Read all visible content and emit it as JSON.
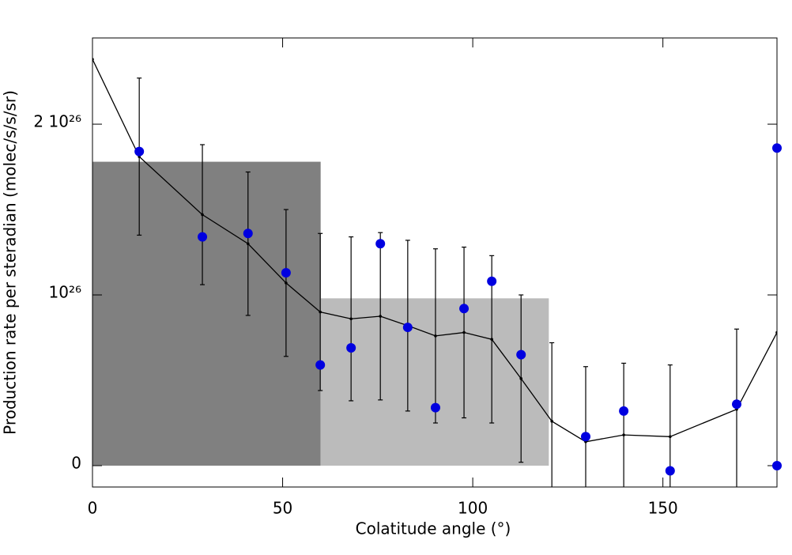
{
  "chart_data": {
    "type": "line",
    "xlabel": "Colatitude angle (°)",
    "ylabel": "Production rate per steradian (molec/s/s/sr)",
    "xlim": [
      0,
      180
    ],
    "ylim": [
      -1.25e+25,
      2.505e+26
    ],
    "xticks": [
      0,
      50,
      100,
      150
    ],
    "yticks": [
      0,
      {
        "value": 1e+26,
        "label": "10²⁶"
      },
      {
        "value": 2e+26,
        "label": "2 10²⁶"
      }
    ],
    "bands": [
      {
        "x": [
          0,
          60
        ],
        "value": 1.78e+26,
        "color": "#808080"
      },
      {
        "x": [
          60,
          120
        ],
        "value": 9.8e+25,
        "color": "#bbbbbb"
      }
    ],
    "series": [
      {
        "mode": "markers",
        "color": "#0000e0",
        "x": [
          12.3,
          28.9,
          40.9,
          50.9,
          59.9,
          68.0,
          75.7,
          82.9,
          90.2,
          97.7,
          105.0,
          112.7,
          129.7,
          139.7,
          151.9,
          169.4,
          180,
          180
        ],
        "values": [
          1.84e+26,
          1.34e+26,
          1.36e+26,
          1.13e+26,
          5.9e+25,
          6.9e+25,
          1.3e+26,
          8.1e+25,
          3.4e+25,
          9.2e+25,
          1.08e+26,
          6.5e+25,
          1.7e+25,
          3.2e+25,
          -3e+24,
          3.6e+25,
          1.86e+26,
          0
        ]
      },
      {
        "mode": "line",
        "color": "#000000",
        "x": [
          0,
          12.3,
          28.9,
          40.9,
          50.9,
          59.9,
          68.0,
          75.7,
          82.9,
          90.2,
          97.7,
          105.0,
          112.7,
          120.8,
          129.7,
          139.7,
          151.9,
          169.4,
          180
        ],
        "values": [
          2.38e+26,
          1.81e+26,
          1.47e+26,
          1.3e+26,
          1.07e+26,
          9e+25,
          8.6e+25,
          8.75e+25,
          8.2e+25,
          7.6e+25,
          7.8e+25,
          7.4e+25,
          5.1e+25,
          2.6e+25,
          1.4e+25,
          1.8e+25,
          1.7e+25,
          3.3e+25,
          7.8e+25
        ],
        "errors": [
          null,
          4.6e+25,
          4.1e+25,
          4.2e+25,
          4.3e+25,
          4.6e+25,
          4.8e+25,
          4.9e+25,
          5e+25,
          5.1e+25,
          5e+25,
          4.9e+25,
          4.9e+25,
          4.6e+25,
          4.4e+25,
          4.2e+25,
          4.2e+25,
          4.7e+25,
          null
        ]
      }
    ]
  }
}
